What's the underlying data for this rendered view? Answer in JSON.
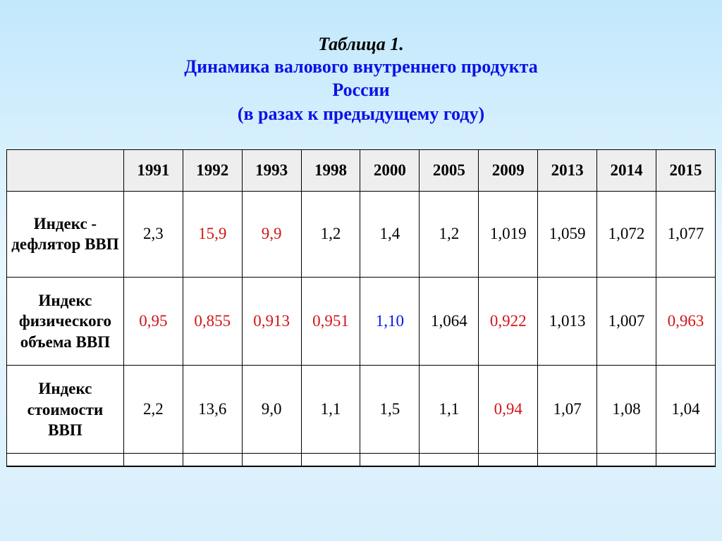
{
  "background_gradient": {
    "top": "#c2e8fc",
    "mid": "#e9f6fe",
    "bottom": "#d7effc"
  },
  "title": {
    "table_label": "Таблица 1.",
    "line1": "Динамика валового внутреннего продукта",
    "line2": "России",
    "line3": "(в разах к предыдущему году)",
    "color": "#0b12e6"
  },
  "table": {
    "type": "table",
    "columns": [
      "1991",
      "1992",
      "1993",
      "1998",
      "2000",
      "2005",
      "2009",
      "2013",
      "2014",
      "2015"
    ],
    "header_bg": "#eeeeee",
    "border_color": "#000000",
    "cell_bg": "#ffffff",
    "label_fontsize": 23,
    "value_fontsize": 23,
    "rows": [
      {
        "label": "Индекс - дефлятор ВВП",
        "cells": [
          {
            "v": "2,3",
            "c": "#000000"
          },
          {
            "v": "15,9",
            "c": "#d21414"
          },
          {
            "v": "9,9",
            "c": "#d21414"
          },
          {
            "v": "1,2",
            "c": "#000000"
          },
          {
            "v": "1,4",
            "c": "#000000"
          },
          {
            "v": "1,2",
            "c": "#000000"
          },
          {
            "v": "1,019",
            "c": "#000000"
          },
          {
            "v": "1,059",
            "c": "#000000"
          },
          {
            "v": "1,072",
            "c": "#000000"
          },
          {
            "v": "1,077",
            "c": "#000000"
          }
        ]
      },
      {
        "label": "Индекс физическог​о объема ВВП",
        "cells": [
          {
            "v": "0,95",
            "c": "#d21414"
          },
          {
            "v": "0,855",
            "c": "#d21414"
          },
          {
            "v": "0,913",
            "c": "#d21414"
          },
          {
            "v": "0,951",
            "c": "#d21414"
          },
          {
            "v": "1,10",
            "c": "#0b12e6"
          },
          {
            "v": "1,064",
            "c": "#000000"
          },
          {
            "v": "0,922",
            "c": "#d21414"
          },
          {
            "v": "1,013",
            "c": "#000000"
          },
          {
            "v": "1,007",
            "c": "#000000"
          },
          {
            "v": "0,963",
            "c": "#d21414"
          }
        ]
      },
      {
        "label": "Индекс стоимости ВВП",
        "cells": [
          {
            "v": "2,2",
            "c": "#000000"
          },
          {
            "v": "13,6",
            "c": "#000000"
          },
          {
            "v": "9,0",
            "c": "#000000"
          },
          {
            "v": "1,1",
            "c": "#000000"
          },
          {
            "v": "1,5",
            "c": "#000000"
          },
          {
            "v": "1,1",
            "c": "#000000"
          },
          {
            "v": "0,94",
            "c": "#d21414"
          },
          {
            "v": "1,07",
            "c": "#000000"
          },
          {
            "v": "1,08",
            "c": "#000000"
          },
          {
            "v": "1,04",
            "c": "#000000"
          }
        ]
      }
    ]
  }
}
